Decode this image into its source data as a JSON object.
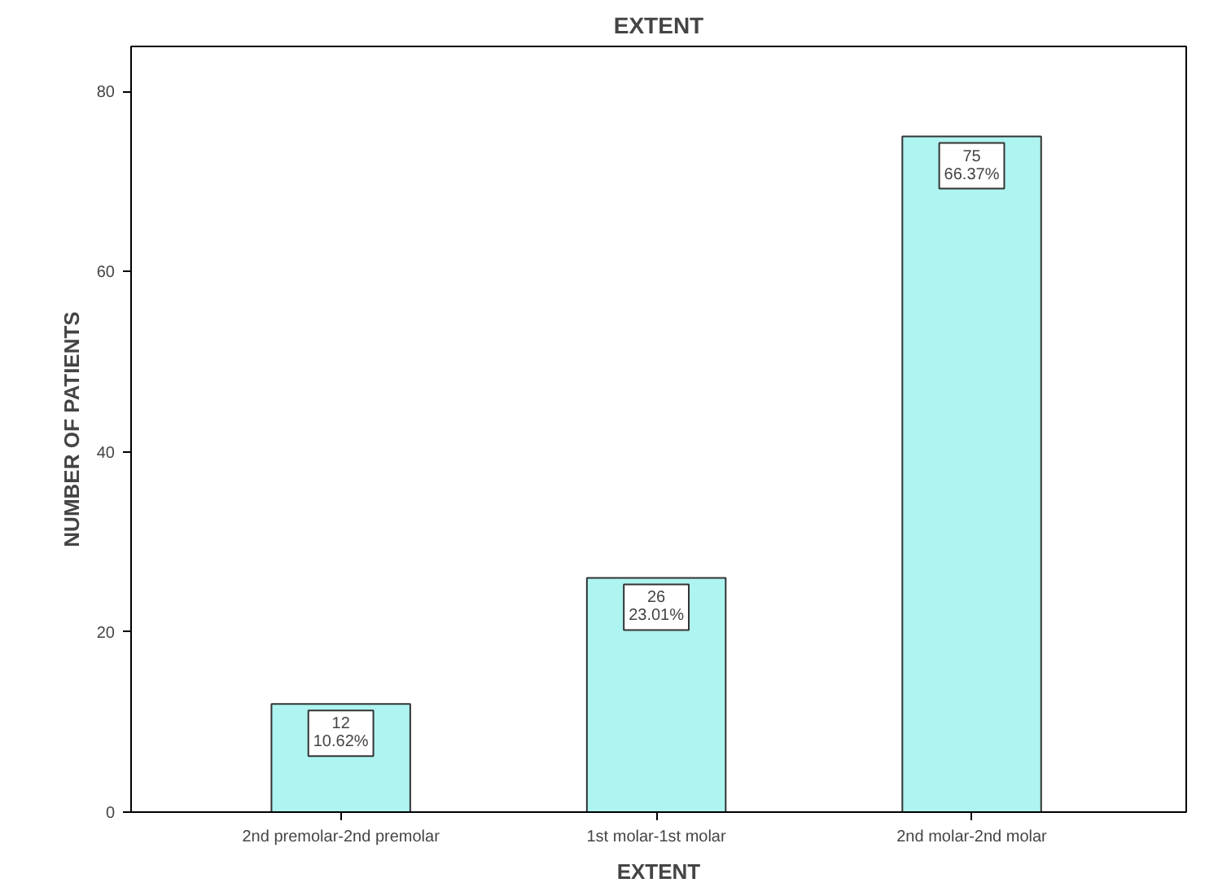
{
  "chart_data": {
    "type": "bar",
    "title": "EXTENT",
    "xlabel": "EXTENT",
    "ylabel": "NUMBER OF PATIENTS",
    "categories": [
      "2nd premolar-2nd premolar",
      "1st molar-1st molar",
      "2nd molar-2nd molar"
    ],
    "values": [
      12,
      26,
      75
    ],
    "color": "#aef4f0",
    "value_labels": [
      "12\n10.62%",
      "26\n23.01%",
      "75\n66.37%"
    ],
    "ylim": [
      0,
      85
    ],
    "yticks": [
      0,
      20,
      40,
      60,
      80
    ],
    "grid": false
  }
}
